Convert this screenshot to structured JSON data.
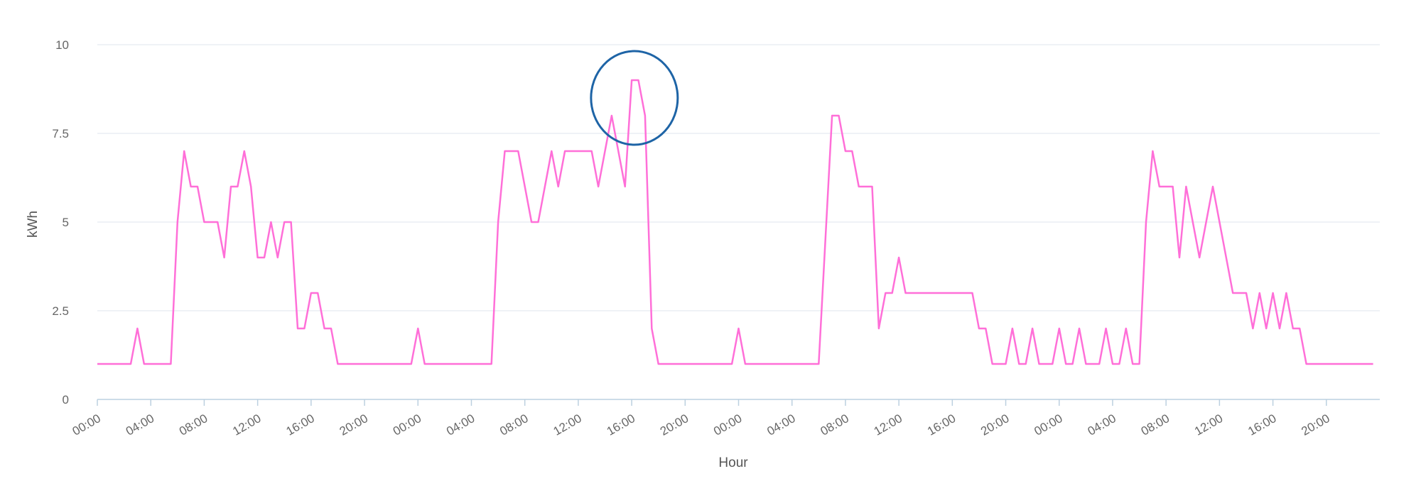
{
  "chart_data": {
    "type": "line",
    "title": "",
    "xlabel": "Hour",
    "ylabel": "kWh",
    "ylim": [
      0,
      10
    ],
    "yticks": [
      "0",
      "2.5",
      "5",
      "7.5",
      "10"
    ],
    "x_ticks": [
      "00:00",
      "04:00",
      "08:00",
      "12:00",
      "16:00",
      "20:00",
      "00:00",
      "04:00",
      "08:00",
      "12:00",
      "16:00",
      "20:00",
      "00:00",
      "04:00",
      "08:00",
      "12:00",
      "16:00",
      "20:00",
      "00:00",
      "04:00",
      "08:00",
      "12:00",
      "16:00",
      "20:00"
    ],
    "grid": true,
    "legend": "none",
    "series": [
      {
        "color": "#ff6fd8",
        "points": [
          [
            0,
            1
          ],
          [
            2.5,
            1
          ],
          [
            3,
            2
          ],
          [
            3.5,
            1
          ],
          [
            5.5,
            1
          ],
          [
            6,
            5
          ],
          [
            6.5,
            7
          ],
          [
            7,
            6
          ],
          [
            7.5,
            6
          ],
          [
            8,
            5
          ],
          [
            9,
            5
          ],
          [
            9.5,
            4
          ],
          [
            10,
            6
          ],
          [
            10.5,
            6
          ],
          [
            11,
            7
          ],
          [
            11.5,
            6
          ],
          [
            12,
            4
          ],
          [
            12.5,
            4
          ],
          [
            13,
            5
          ],
          [
            13.5,
            4
          ],
          [
            14,
            5
          ],
          [
            14.5,
            5
          ],
          [
            15,
            2
          ],
          [
            15.5,
            2
          ],
          [
            16,
            3
          ],
          [
            16.5,
            3
          ],
          [
            17,
            2
          ],
          [
            17.5,
            2
          ],
          [
            18,
            1
          ],
          [
            23.5,
            1
          ],
          [
            24,
            2
          ],
          [
            24.5,
            1
          ],
          [
            29.5,
            1
          ],
          [
            30,
            5
          ],
          [
            30.5,
            7
          ],
          [
            31.5,
            7
          ],
          [
            32.5,
            5
          ],
          [
            33,
            5
          ],
          [
            34,
            7
          ],
          [
            34.5,
            6
          ],
          [
            35,
            7
          ],
          [
            37,
            7
          ],
          [
            37.5,
            6
          ],
          [
            38.5,
            8
          ],
          [
            39.5,
            6
          ],
          [
            40,
            9
          ],
          [
            40.5,
            9
          ],
          [
            41,
            8
          ],
          [
            41.5,
            2
          ],
          [
            42,
            1
          ],
          [
            47.5,
            1
          ],
          [
            48,
            2
          ],
          [
            48.5,
            1
          ],
          [
            54,
            1
          ],
          [
            55,
            8
          ],
          [
            55.5,
            8
          ],
          [
            56,
            7
          ],
          [
            56.5,
            7
          ],
          [
            57,
            6
          ],
          [
            58,
            6
          ],
          [
            58.5,
            2
          ],
          [
            59,
            3
          ],
          [
            59.5,
            3
          ],
          [
            60,
            4
          ],
          [
            60.5,
            3
          ],
          [
            65.5,
            3
          ],
          [
            66,
            2
          ],
          [
            66.5,
            2
          ],
          [
            67,
            1
          ],
          [
            68,
            1
          ],
          [
            68.5,
            2
          ],
          [
            69,
            1
          ],
          [
            69.5,
            1
          ],
          [
            70,
            2
          ],
          [
            70.5,
            1
          ],
          [
            71.5,
            1
          ],
          [
            72,
            2
          ],
          [
            72.5,
            1
          ],
          [
            73,
            1
          ],
          [
            73.5,
            2
          ],
          [
            74,
            1
          ],
          [
            75,
            1
          ],
          [
            75.5,
            2
          ],
          [
            76,
            1
          ],
          [
            76.5,
            1
          ],
          [
            77,
            2
          ],
          [
            77.5,
            1
          ],
          [
            78,
            1
          ],
          [
            78.5,
            5
          ],
          [
            79,
            7
          ],
          [
            79.5,
            6
          ],
          [
            80.5,
            6
          ],
          [
            81,
            4
          ],
          [
            81.5,
            6
          ],
          [
            82.5,
            4
          ],
          [
            83.5,
            6
          ],
          [
            85,
            3
          ],
          [
            86,
            3
          ],
          [
            86.5,
            2
          ],
          [
            87,
            3
          ],
          [
            87.5,
            2
          ],
          [
            88,
            3
          ],
          [
            88.5,
            2
          ],
          [
            89,
            3
          ],
          [
            89.5,
            2
          ],
          [
            90,
            2
          ],
          [
            90.5,
            1
          ],
          [
            95.5,
            1
          ]
        ]
      }
    ],
    "annotations": [
      {
        "type": "circle",
        "x": 40.2,
        "y": 8.5,
        "color": "#1e64a6"
      }
    ]
  }
}
